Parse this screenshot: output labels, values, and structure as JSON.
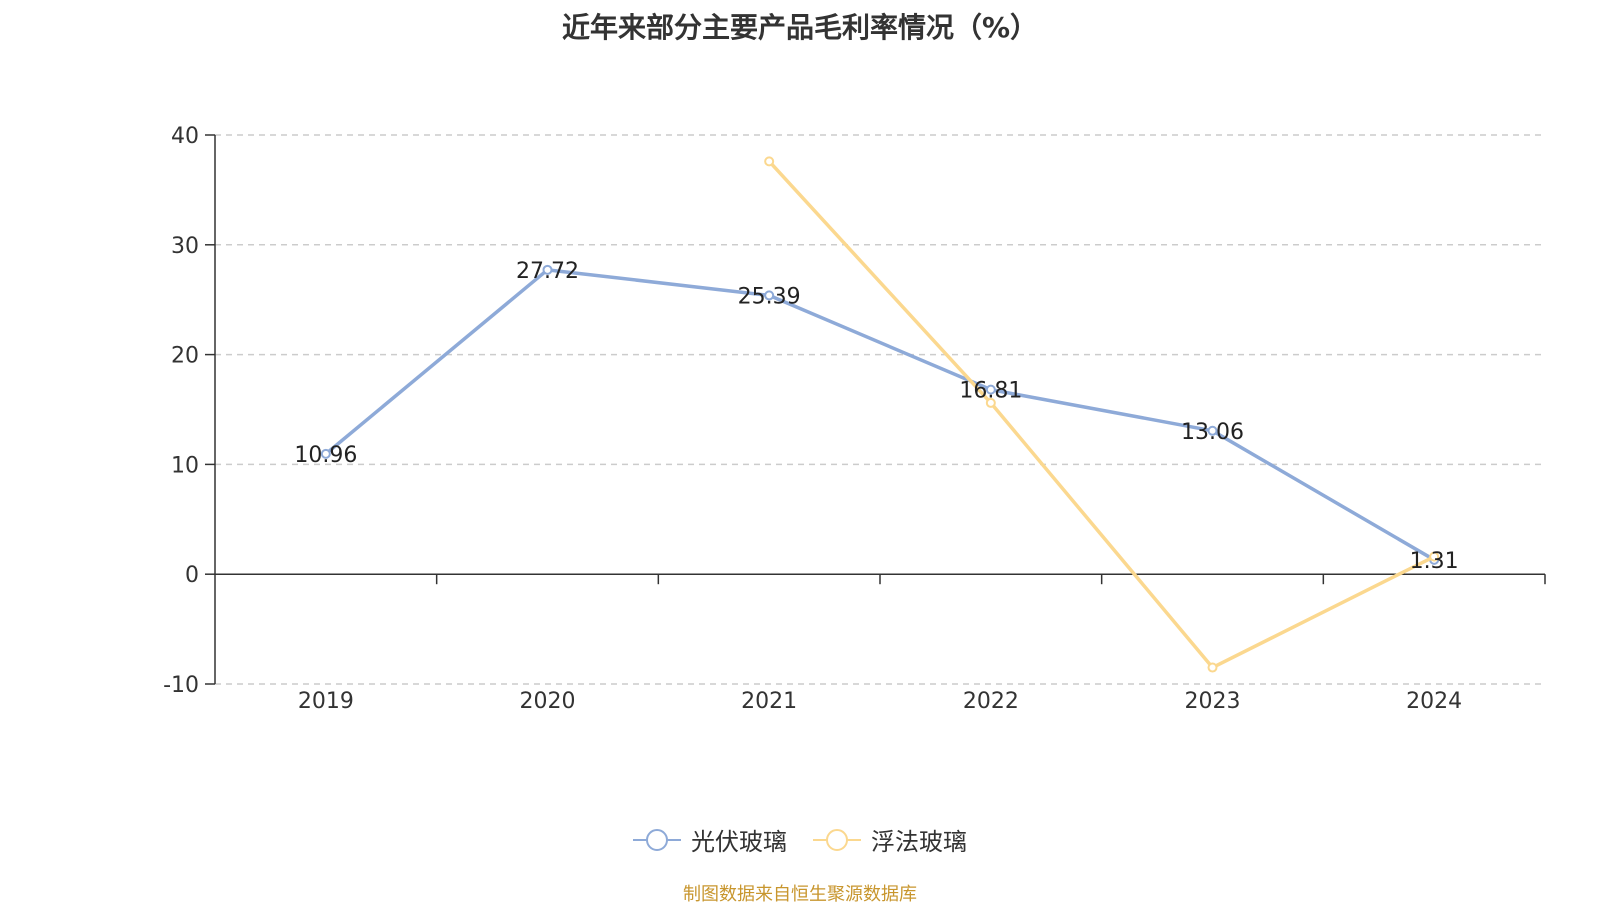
{
  "title": "近年来部分主要产品毛利率情况（%）",
  "source": "制图数据来自恒生聚源数据库",
  "chart_data": {
    "type": "line",
    "title": "近年来部分主要产品毛利率情况（%）",
    "categories": [
      "2019",
      "2020",
      "2021",
      "2022",
      "2023",
      "2024"
    ],
    "ylim": [
      -10,
      40
    ],
    "yticks": [
      -10,
      0,
      10,
      20,
      30,
      40
    ],
    "grid": true,
    "legend_position": "bottom",
    "series": [
      {
        "name": "光伏玻璃",
        "color": "#8eaad8",
        "values": [
          10.96,
          27.72,
          25.39,
          16.81,
          13.06,
          1.31
        ],
        "labels": [
          "10.96",
          "27.72",
          "25.39",
          "16.81",
          "13.06",
          "1.31"
        ]
      },
      {
        "name": "浮法玻璃",
        "color": "#fbd88f",
        "values": [
          null,
          null,
          37.6,
          15.6,
          -8.5,
          1.6
        ],
        "labels": []
      }
    ]
  }
}
